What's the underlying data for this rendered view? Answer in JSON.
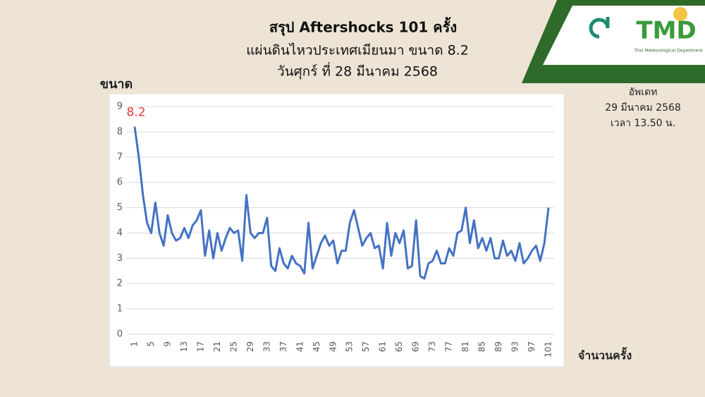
{
  "chart_data": {
    "type": "line",
    "title": "สรุป Aftershocks 101 ครั้ง",
    "subtitle": [
      "แผ่นดินไหวประเทศเมียนมา ขนาด 8.2",
      "วันศุกร์ ที่ 28 มีนาคม 2568"
    ],
    "y_label": "ขนาด",
    "x_label": "จำนวนครั้ง",
    "categories": [
      1,
      null,
      null,
      null,
      5,
      null,
      null,
      null,
      9,
      null,
      null,
      null,
      13,
      null,
      null,
      null,
      17,
      null,
      null,
      null,
      21,
      null,
      null,
      null,
      25,
      null,
      null,
      null,
      29,
      null,
      null,
      null,
      33,
      null,
      null,
      null,
      37,
      null,
      null,
      null,
      41,
      null,
      null,
      null,
      45,
      null,
      null,
      null,
      49,
      null,
      null,
      null,
      53,
      null,
      null,
      null,
      57,
      null,
      null,
      null,
      61,
      null,
      null,
      null,
      65,
      null,
      null,
      null,
      69,
      null,
      null,
      null,
      73,
      null,
      null,
      null,
      77,
      null,
      null,
      null,
      81,
      null,
      null,
      null,
      85,
      null,
      null,
      null,
      89,
      null,
      null,
      null,
      93,
      null,
      null,
      null,
      97,
      null,
      null,
      null,
      101
    ],
    "values": [
      8.2,
      7.0,
      5.5,
      4.4,
      4.0,
      5.2,
      4.0,
      3.5,
      4.7,
      4.0,
      3.7,
      3.8,
      4.2,
      3.8,
      4.3,
      4.5,
      4.9,
      3.1,
      4.1,
      3.0,
      4.0,
      3.3,
      3.8,
      4.2,
      4.0,
      4.1,
      2.9,
      5.5,
      4.0,
      3.8,
      4.0,
      4.0,
      4.6,
      2.7,
      2.5,
      3.4,
      2.8,
      2.6,
      3.1,
      2.8,
      2.7,
      2.4,
      4.4,
      2.6,
      3.1,
      3.6,
      3.9,
      3.5,
      3.7,
      2.8,
      3.3,
      3.3,
      4.4,
      4.9,
      4.2,
      3.5,
      3.8,
      4.0,
      3.4,
      3.5,
      2.6,
      4.4,
      3.1,
      4.0,
      3.6,
      4.1,
      2.6,
      2.7,
      4.5,
      2.3,
      2.2,
      2.8,
      2.9,
      3.3,
      2.8,
      2.8,
      3.4,
      3.1,
      4.0,
      4.1,
      5.0,
      3.6,
      4.5,
      3.4,
      3.8,
      3.3,
      3.8,
      3.0,
      3.0,
      3.7,
      3.1,
      3.3,
      2.9,
      3.6,
      2.8,
      3.0,
      3.3,
      3.5,
      2.9,
      3.6,
      5.0
    ],
    "color": "#4472c4",
    "label_color": "#e03a3a",
    "ylim": [
      0,
      9
    ],
    "yticks": [
      0,
      1,
      2,
      3,
      4,
      5,
      6,
      7,
      8,
      9
    ],
    "grid": true
  },
  "update_note": [
    "อัพเดท",
    "29 มีนาคม 2568",
    "เวลา 13.50 น."
  ],
  "logo": {
    "name": "TMD",
    "caption": "Thai Meteorological Department"
  }
}
